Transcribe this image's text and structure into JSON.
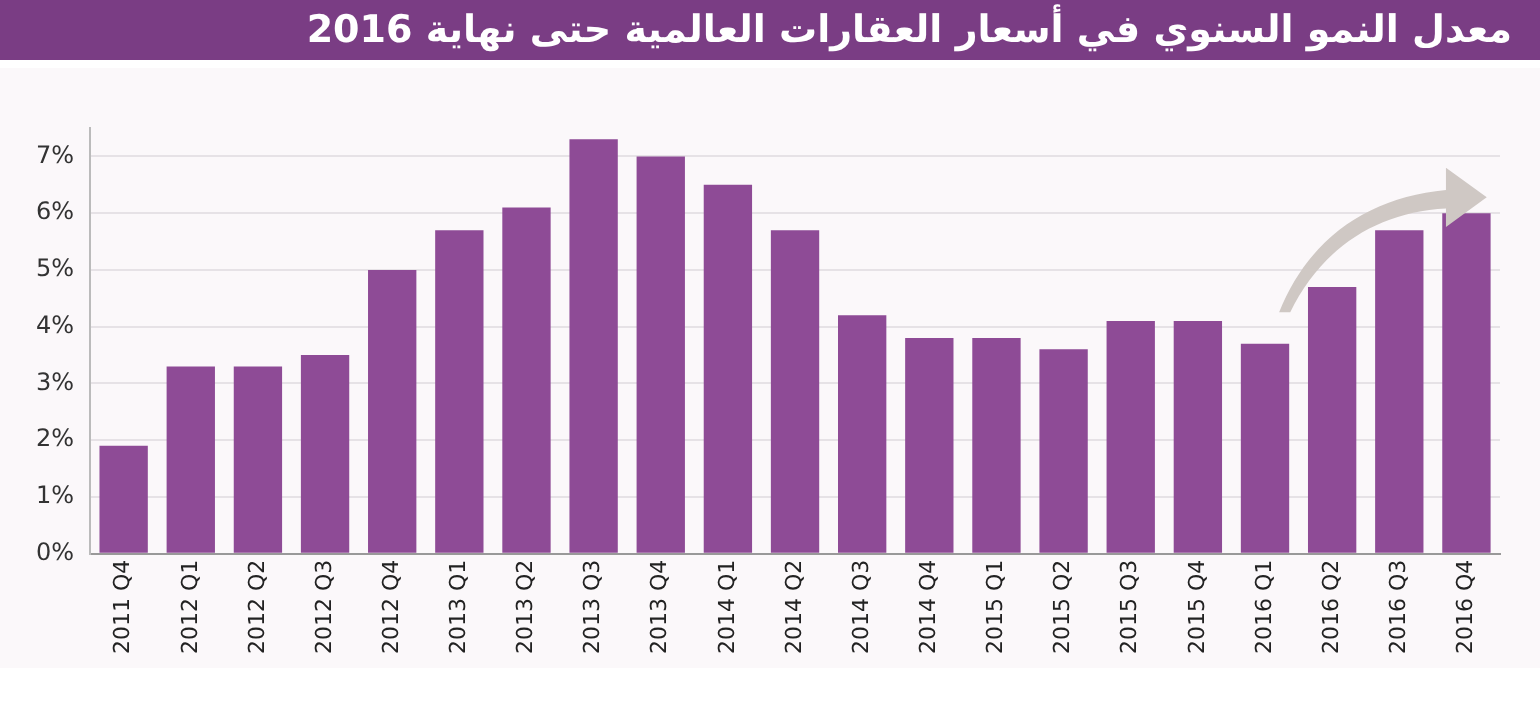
{
  "chart_data": {
    "type": "bar",
    "title": "معدل النمو السنوي في أسعار العقارات العالمية حتى نهاية 2016",
    "categories": [
      "2011 Q4",
      "2012 Q1",
      "2012 Q2",
      "2012 Q3",
      "2012 Q4",
      "2013 Q1",
      "2013 Q2",
      "2013 Q3",
      "2013 Q4",
      "2014 Q1",
      "2014 Q2",
      "2014 Q3",
      "2014 Q4",
      "2015 Q1",
      "2015 Q2",
      "2015 Q3",
      "2015 Q4",
      "2016 Q1",
      "2016 Q2",
      "2016 Q3",
      "2016 Q4"
    ],
    "values": [
      1.9,
      3.3,
      3.3,
      3.5,
      5.0,
      5.7,
      6.1,
      7.3,
      7.0,
      6.5,
      5.7,
      4.2,
      3.8,
      3.8,
      3.6,
      4.1,
      4.1,
      3.7,
      4.7,
      5.7,
      6.0
    ],
    "color": "#8e4b96",
    "ylim": [
      0,
      7.5
    ],
    "yticks": [
      {
        "value": 0,
        "label": "0%"
      },
      {
        "value": 1,
        "label": "1%"
      },
      {
        "value": 2,
        "label": "2%"
      },
      {
        "value": 3,
        "label": "3%"
      },
      {
        "value": 4,
        "label": "4%"
      },
      {
        "value": 5,
        "label": "5%"
      },
      {
        "value": 6,
        "label": "6%"
      },
      {
        "value": 7,
        "label": "7%"
      }
    ],
    "grid": "y",
    "legend": false
  }
}
